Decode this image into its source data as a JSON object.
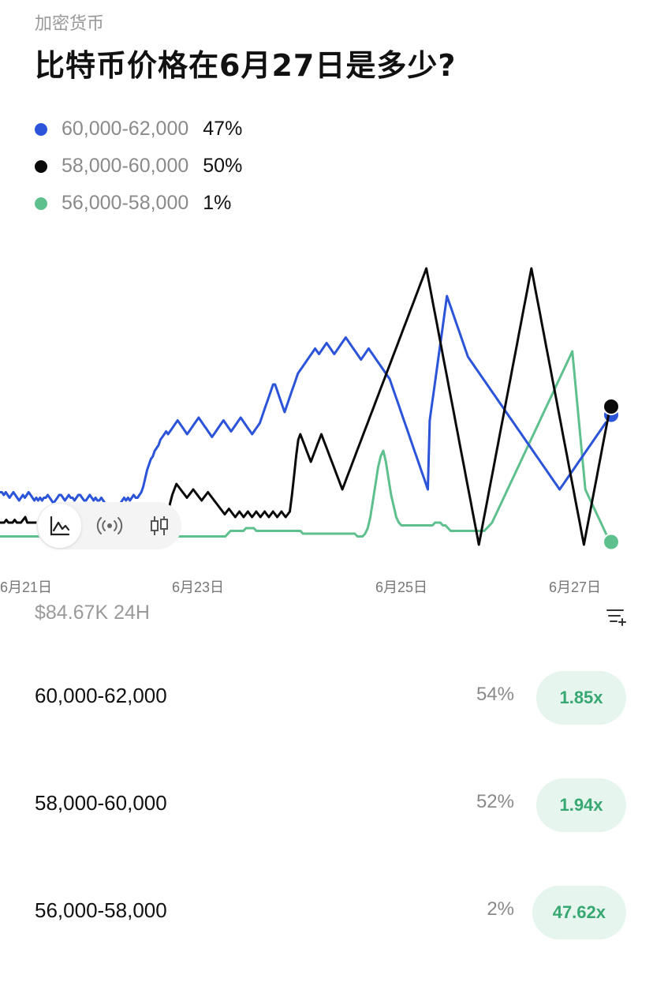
{
  "header": {
    "category": "加密货币",
    "title": "比特币价格在6月27日是多少?"
  },
  "legend": [
    {
      "range": "60,000-62,000",
      "pct": "47%",
      "color": "#2b54d9"
    },
    {
      "range": "58,000-60,000",
      "pct": "50%",
      "color": "#0a0a0a"
    },
    {
      "range": "56,000-58,000",
      "pct": "1%",
      "color": "#5ec08c"
    }
  ],
  "toolbar": {
    "icons": [
      "line-chart-icon",
      "live-broadcast-icon",
      "candlestick-icon"
    ],
    "active": 0
  },
  "chart_data": {
    "type": "line",
    "x_ticks": [
      "6月21日",
      "6月23日",
      "6月25日",
      "6月27日"
    ],
    "ylim": [
      0,
      100
    ],
    "grid": false,
    "series": [
      {
        "name": "60,000-62,000",
        "color": "#2b54d9",
        "values": [
          19,
          19,
          18,
          19,
          18,
          17,
          18,
          19,
          18,
          17,
          16,
          17,
          18,
          17,
          18,
          19,
          18,
          17,
          16,
          17,
          16,
          17,
          16,
          17,
          17,
          18,
          17,
          16,
          15,
          16,
          17,
          18,
          18,
          17,
          16,
          17,
          18,
          17,
          17,
          16,
          17,
          18,
          18,
          17,
          16,
          16,
          17,
          18,
          17,
          16,
          17,
          16,
          16,
          17,
          16,
          15,
          14,
          13,
          12,
          11,
          12,
          13,
          14,
          15,
          16,
          17,
          16,
          17,
          16,
          17,
          18,
          17,
          17,
          18,
          19,
          21,
          24,
          27,
          29,
          31,
          32,
          34,
          35,
          36,
          38,
          39,
          40,
          41,
          40,
          41,
          42,
          43,
          44,
          45,
          44,
          43,
          42,
          41,
          40,
          41,
          42,
          43,
          44,
          45,
          46,
          45,
          44,
          43,
          42,
          41,
          40,
          39,
          40,
          41,
          42,
          43,
          44,
          45,
          44,
          43,
          42,
          41,
          42,
          43,
          44,
          45,
          46,
          45,
          44,
          43,
          42,
          41,
          40,
          41,
          42,
          43,
          44,
          46,
          48,
          50,
          52,
          54,
          56,
          58,
          58,
          56,
          54,
          52,
          50,
          48,
          50,
          52,
          54,
          56,
          58,
          60,
          62,
          63,
          64,
          65,
          66,
          67,
          68,
          69,
          70,
          71,
          70,
          69,
          70,
          71,
          72,
          73,
          72,
          71,
          70,
          69,
          70,
          71,
          72,
          73,
          74,
          75,
          74,
          73,
          72,
          71,
          70,
          69,
          68,
          67,
          68,
          69,
          70,
          71,
          70,
          69,
          68,
          67,
          66,
          65,
          64,
          63,
          62,
          61,
          60,
          58,
          56,
          54,
          52,
          50,
          48,
          46,
          44,
          42,
          40,
          38,
          36,
          34,
          32,
          30,
          28,
          26,
          24,
          22,
          20,
          45,
          50,
          55,
          60,
          65,
          70,
          75,
          80,
          85,
          90,
          88,
          86,
          84,
          82,
          80,
          78,
          76,
          74,
          72,
          70,
          68,
          67,
          66,
          65,
          64,
          63,
          62,
          61,
          60,
          59,
          58,
          57,
          56,
          55,
          54,
          53,
          52,
          51,
          50,
          49,
          48,
          47,
          46,
          45,
          44,
          43,
          42,
          41,
          40,
          39,
          38,
          37,
          36,
          35,
          34,
          33,
          32,
          31,
          30,
          29,
          28,
          27,
          26,
          25,
          24,
          23,
          22,
          21,
          20,
          21,
          22,
          23,
          24,
          25,
          26,
          27,
          28,
          29,
          30,
          31,
          32,
          33,
          34,
          35,
          36,
          37,
          38,
          39,
          40,
          41,
          42,
          43,
          44,
          45,
          46,
          47
        ]
      },
      {
        "name": "58,000-60,000",
        "color": "#0a0a0a",
        "values": [
          8,
          8,
          8,
          9,
          8,
          8,
          8,
          9,
          8,
          8,
          8,
          9,
          10,
          8,
          8,
          8,
          8,
          8,
          8,
          8,
          8,
          8,
          8,
          8,
          8,
          8,
          8,
          8,
          8,
          8,
          8,
          8,
          8,
          8,
          8,
          8,
          8,
          8,
          8,
          8,
          8,
          8,
          8,
          8,
          8,
          8,
          8,
          8,
          8,
          8,
          8,
          8,
          8,
          8,
          8,
          8,
          8,
          8,
          8,
          8,
          8,
          8,
          8,
          8,
          8,
          8,
          8,
          8,
          8,
          8,
          8,
          8,
          8,
          8,
          8,
          8,
          8,
          8,
          9,
          10,
          12,
          15,
          18,
          20,
          22,
          21,
          20,
          19,
          18,
          17,
          18,
          19,
          20,
          19,
          18,
          17,
          16,
          17,
          18,
          19,
          18,
          17,
          16,
          15,
          14,
          13,
          12,
          11,
          12,
          13,
          12,
          11,
          10,
          11,
          12,
          11,
          10,
          11,
          12,
          11,
          10,
          11,
          12,
          11,
          10,
          11,
          12,
          11,
          10,
          11,
          12,
          11,
          10,
          11,
          12,
          11,
          10,
          11,
          12,
          18,
          25,
          32,
          38,
          40,
          38,
          36,
          34,
          32,
          30,
          32,
          34,
          36,
          38,
          40,
          38,
          36,
          34,
          32,
          30,
          28,
          26,
          24,
          22,
          20,
          22,
          24,
          26,
          28,
          30,
          32,
          34,
          36,
          38,
          40,
          42,
          44,
          46,
          48,
          50,
          52,
          54,
          56,
          58,
          60,
          62,
          64,
          66,
          68,
          70,
          72,
          74,
          76,
          78,
          80,
          82,
          84,
          86,
          88,
          90,
          92,
          94,
          96,
          98,
          100,
          96,
          92,
          88,
          84,
          80,
          76,
          72,
          68,
          64,
          60,
          56,
          52,
          48,
          44,
          40,
          36,
          32,
          28,
          24,
          20,
          16,
          12,
          8,
          4,
          0,
          4,
          8,
          12,
          16,
          20,
          24,
          28,
          32,
          36,
          40,
          44,
          48,
          52,
          56,
          60,
          64,
          68,
          72,
          76,
          80,
          84,
          88,
          92,
          96,
          100,
          96,
          92,
          88,
          84,
          80,
          76,
          72,
          68,
          64,
          60,
          56,
          52,
          48,
          44,
          40,
          36,
          32,
          28,
          24,
          20,
          16,
          12,
          8,
          4,
          0,
          4,
          8,
          12,
          16,
          20,
          24,
          28,
          32,
          36,
          40,
          44,
          48,
          50
        ]
      },
      {
        "name": "56,000-58,000",
        "color": "#5ec08c",
        "values": [
          3,
          3,
          3,
          3,
          3,
          3,
          3,
          3,
          3,
          3,
          3,
          3,
          3,
          3,
          3,
          3,
          3,
          3,
          3,
          3,
          3,
          3,
          3,
          3,
          3,
          3,
          3,
          3,
          3,
          3,
          3,
          3,
          3,
          3,
          3,
          3,
          3,
          3,
          3,
          3,
          3,
          3,
          3,
          3,
          3,
          3,
          3,
          3,
          3,
          3,
          3,
          3,
          3,
          3,
          3,
          3,
          3,
          3,
          3,
          3,
          3,
          3,
          3,
          3,
          3,
          3,
          3,
          3,
          3,
          3,
          3,
          3,
          3,
          3,
          3,
          3,
          3,
          3,
          3,
          3,
          3,
          3,
          3,
          3,
          3,
          3,
          3,
          3,
          4,
          5,
          5,
          5,
          5,
          5,
          5,
          6,
          6,
          6,
          6,
          5,
          5,
          5,
          5,
          5,
          5,
          5,
          5,
          5,
          5,
          5,
          5,
          5,
          5,
          5,
          5,
          5,
          5,
          4,
          4,
          4,
          4,
          4,
          4,
          4,
          4,
          4,
          4,
          4,
          4,
          4,
          4,
          4,
          4,
          4,
          4,
          4,
          4,
          4,
          3,
          3,
          3,
          4,
          6,
          10,
          16,
          22,
          28,
          32,
          34,
          30,
          24,
          18,
          14,
          10,
          8,
          7,
          7,
          7,
          7,
          7,
          7,
          7,
          7,
          7,
          7,
          7,
          7,
          7,
          8,
          8,
          8,
          7,
          7,
          6,
          5,
          5,
          5,
          5,
          5,
          5,
          5,
          5,
          5,
          5,
          5,
          5,
          5,
          5,
          6,
          7,
          8,
          10,
          12,
          14,
          16,
          18,
          20,
          22,
          24,
          26,
          28,
          30,
          32,
          34,
          36,
          38,
          40,
          42,
          44,
          46,
          48,
          50,
          52,
          54,
          56,
          58,
          60,
          62,
          64,
          66,
          68,
          70,
          60,
          50,
          40,
          30,
          20,
          18,
          16,
          14,
          12,
          10,
          8,
          6,
          4,
          2,
          1
        ]
      }
    ]
  },
  "volume": "$84.67K 24H",
  "outcomes": [
    {
      "label": "60,000-62,000",
      "pct": "54%",
      "multiplier": "1.85x"
    },
    {
      "label": "58,000-60,000",
      "pct": "52%",
      "multiplier": "1.94x"
    },
    {
      "label": "56,000-58,000",
      "pct": "2%",
      "multiplier": "47.62x"
    }
  ]
}
